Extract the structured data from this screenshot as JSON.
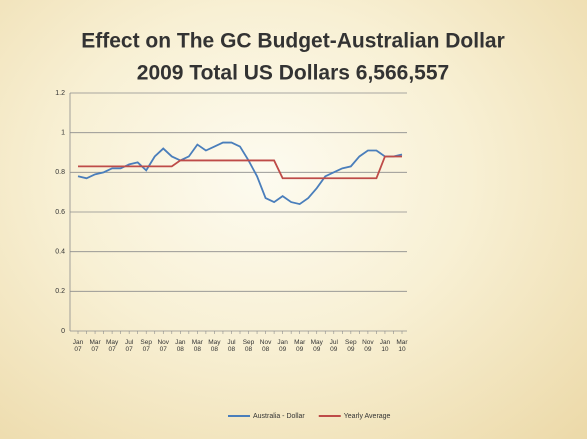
{
  "chart_data": {
    "type": "line",
    "title": "Effect on The GC Budget-Australian Dollar",
    "subtitle": "2009 Total US Dollars 6,566,557",
    "categories": [
      "Jan 07",
      null,
      "Mar 07",
      null,
      "May 07",
      null,
      "Jul 07",
      null,
      "Sep 07",
      null,
      "Nov 07",
      null,
      "Jan 08",
      null,
      "Mar 08",
      null,
      "May 08",
      null,
      "Jul 08",
      null,
      "Sep 08",
      null,
      "Nov 08",
      null,
      "Jan 09",
      null,
      "Mar 09",
      null,
      "May 09",
      null,
      "Jul 09",
      null,
      "Sep 09",
      null,
      "Nov 09",
      null,
      "Jan 10",
      null,
      "Mar 10"
    ],
    "series": [
      {
        "name": "Australia - Dollar",
        "color": "#4a7ebb",
        "values": [
          0.78,
          0.77,
          0.79,
          0.8,
          0.82,
          0.82,
          0.84,
          0.85,
          0.81,
          0.88,
          0.92,
          0.88,
          0.86,
          0.88,
          0.94,
          0.91,
          0.93,
          0.95,
          0.95,
          0.93,
          0.86,
          0.78,
          0.67,
          0.65,
          0.68,
          0.65,
          0.64,
          0.67,
          0.72,
          0.78,
          0.8,
          0.82,
          0.83,
          0.88,
          0.91,
          0.91,
          0.88,
          0.88,
          0.89
        ]
      },
      {
        "name": "Yearly Average",
        "color": "#be4b48",
        "values": [
          0.83,
          0.83,
          0.83,
          0.83,
          0.83,
          0.83,
          0.83,
          0.83,
          0.83,
          0.83,
          0.83,
          0.83,
          0.86,
          0.86,
          0.86,
          0.86,
          0.86,
          0.86,
          0.86,
          0.86,
          0.86,
          0.86,
          0.86,
          0.86,
          0.77,
          0.77,
          0.77,
          0.77,
          0.77,
          0.77,
          0.77,
          0.77,
          0.77,
          0.77,
          0.77,
          0.77,
          0.88,
          0.88,
          0.88
        ]
      }
    ],
    "ylim": [
      0,
      1.2
    ],
    "yticks": [
      0,
      0.2,
      0.4,
      0.6,
      0.8,
      1,
      1.2
    ],
    "grid": true,
    "legend": "bottom"
  }
}
